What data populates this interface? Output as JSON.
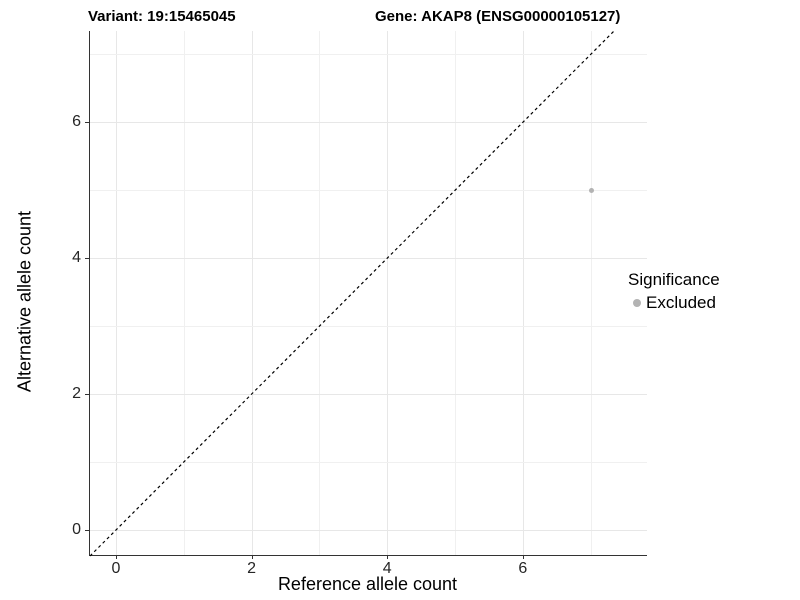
{
  "titles": {
    "variant": "Variant: 19:15465045",
    "gene": "Gene: AKAP8 (ENSG00000105127)"
  },
  "chart_data": {
    "type": "scatter",
    "title_left": "Variant: 19:15465045",
    "title_right": "Gene: AKAP8 (ENSG00000105127)",
    "xlabel": "Reference allele count",
    "ylabel": "Alternative allele count",
    "x_ticks": [
      0,
      2,
      4,
      6
    ],
    "y_ticks": [
      0,
      2,
      4,
      6
    ],
    "grid_x": [
      0,
      1,
      2,
      3,
      4,
      5,
      6,
      7
    ],
    "grid_y": [
      0,
      1,
      2,
      3,
      4,
      5,
      6,
      7
    ],
    "xlim": [
      -0.38,
      7.85
    ],
    "ylim": [
      -0.37,
      7.35
    ],
    "grid": "on",
    "points": [
      {
        "x": 7,
        "y": 5,
        "series": "Excluded"
      }
    ],
    "identity_line": {
      "equation": "y = x",
      "style": "dashed",
      "color": "#000000"
    },
    "legend": {
      "title": "Significance",
      "position": "right",
      "entries": [
        {
          "label": "Excluded",
          "color": "#b3b3b3"
        }
      ]
    },
    "colors": {
      "background": "#ffffff",
      "grid_major": "#e7e7e7",
      "grid_minor": "#f0f0f0",
      "axis_line": "#333333"
    }
  }
}
